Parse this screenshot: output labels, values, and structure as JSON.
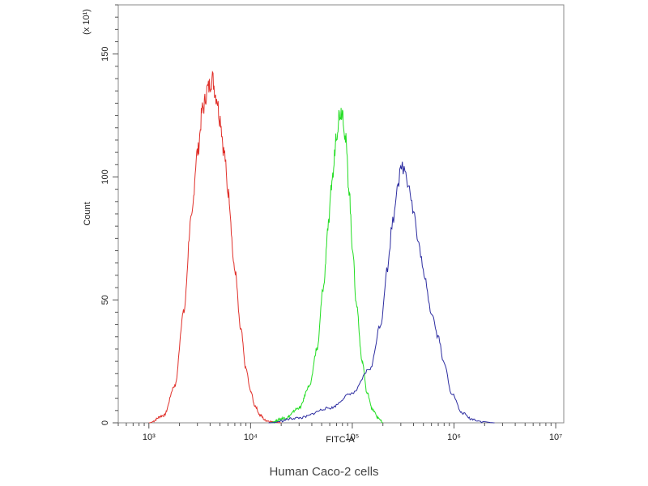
{
  "chart_data": {
    "type": "line",
    "title": "",
    "caption": "Human Caco-2 cells",
    "xlabel": "FITC-A",
    "ylabel": "Count",
    "y_multiplier_label": "(x 10¹)",
    "x_scale": "log",
    "xlim": [
      500,
      12000000
    ],
    "ylim": [
      0,
      170
    ],
    "x_ticks": [
      {
        "value": 1000,
        "label": "10³"
      },
      {
        "value": 10000,
        "label": "10⁴"
      },
      {
        "value": 100000,
        "label": "10⁵"
      },
      {
        "value": 1000000,
        "label": "10⁶"
      },
      {
        "value": 10000000,
        "label": "10⁷"
      }
    ],
    "y_ticks": [
      0,
      50,
      100,
      150
    ],
    "grid": false,
    "legend": "none",
    "series": [
      {
        "color": "#e0302a",
        "x": [
          1000,
          1400,
          1800,
          2200,
          2600,
          3000,
          3400,
          3800,
          4200,
          4600,
          5000,
          5500,
          6000,
          7000,
          8000,
          9000,
          10000,
          11000,
          12500,
          14000,
          16000,
          20000
        ],
        "y": [
          0,
          3,
          15,
          45,
          82,
          110,
          128,
          136,
          140,
          133,
          124,
          110,
          94,
          62,
          38,
          22,
          13,
          7,
          3,
          1,
          0.5,
          0
        ]
      },
      {
        "color": "#22dd22",
        "x": [
          15000,
          22000,
          30000,
          38000,
          45000,
          52000,
          58000,
          64000,
          70000,
          75000,
          80000,
          86000,
          93000,
          100000,
          110000,
          125000,
          140000,
          160000,
          180000,
          200000
        ],
        "y": [
          0,
          2,
          6,
          15,
          30,
          55,
          80,
          100,
          118,
          126,
          127,
          115,
          95,
          72,
          48,
          25,
          12,
          5,
          2,
          0
        ]
      },
      {
        "color": "#2c2ca0",
        "x": [
          15000,
          30000,
          60000,
          100000,
          150000,
          190000,
          220000,
          250000,
          280000,
          310000,
          330000,
          360000,
          400000,
          450000,
          520000,
          600000,
          700000,
          800000,
          950000,
          1200000,
          1500000,
          1900000,
          2500000
        ],
        "y": [
          0,
          2,
          6,
          12,
          22,
          40,
          62,
          82,
          98,
          104,
          103,
          97,
          86,
          72,
          58,
          45,
          35,
          24,
          12,
          4,
          1.5,
          0.5,
          0
        ]
      }
    ]
  }
}
